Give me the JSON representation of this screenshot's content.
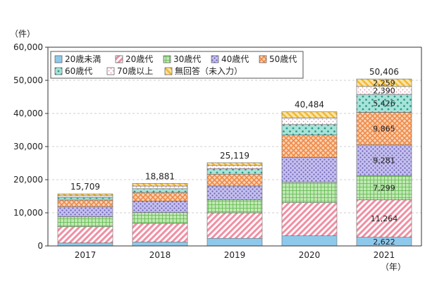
{
  "chart_data": {
    "type": "bar",
    "stacked": true,
    "y_unit_label": "（件）",
    "x_unit_label": "（年）",
    "categories": [
      "2017",
      "2018",
      "2019",
      "2020",
      "2021"
    ],
    "totals": [
      15709,
      18881,
      25119,
      40484,
      50406
    ],
    "total_labels": [
      "15,709",
      "18,881",
      "25,119",
      "40,484",
      "50,406"
    ],
    "ylim": [
      0,
      60000
    ],
    "yticks": [
      0,
      10000,
      20000,
      30000,
      40000,
      50000,
      60000
    ],
    "ytick_labels": [
      "0",
      "10,000",
      "20,000",
      "30,000",
      "40,000",
      "50,000",
      "60,000"
    ],
    "legend_position": "top-left",
    "series": [
      {
        "name": "20歳未満",
        "color": "#8ec9ec",
        "pattern": "solid",
        "values": [
          900,
          1150,
          2300,
          3050,
          2622
        ],
        "labels": [
          "",
          "",
          "",
          "",
          "2,622"
        ]
      },
      {
        "name": "20歳代",
        "color": "#f08fa3",
        "pattern": "diag",
        "values": [
          4900,
          5650,
          7700,
          10000,
          11264
        ],
        "labels": [
          "",
          "",
          "",
          "",
          "11,264"
        ]
      },
      {
        "name": "30歳代",
        "color": "#7fcf6a",
        "pattern": "grid",
        "values": [
          3050,
          3300,
          3900,
          6150,
          7299
        ],
        "labels": [
          "",
          "",
          "",
          "",
          "7,299"
        ]
      },
      {
        "name": "40歳代",
        "color": "#9d94d8",
        "pattern": "dots",
        "values": [
          3000,
          3450,
          4200,
          7500,
          9281
        ],
        "labels": [
          "",
          "",
          "",
          "",
          "9,281"
        ]
      },
      {
        "name": "50歳代",
        "color": "#f5a36a",
        "pattern": "cross",
        "values": [
          2000,
          2600,
          3550,
          6800,
          9865
        ],
        "labels": [
          "",
          "",
          "",
          "",
          "9,865"
        ]
      },
      {
        "name": "60歳代",
        "color": "#5cc5b5",
        "pattern": "sparsedots",
        "values": [
          759,
          1130,
          1650,
          3150,
          5426
        ],
        "labels": [
          "",
          "",
          "",
          "",
          "5,426"
        ]
      },
      {
        "name": "70歳以上",
        "color": "#f4a7c1",
        "pattern": "pinkdots",
        "values": [
          500,
          800,
          1000,
          1984,
          2390
        ],
        "labels": [
          "",
          "",
          "",
          "",
          "2,390"
        ]
      },
      {
        "name": "無回答（未入力）",
        "color": "#f3c552",
        "pattern": "diag-yellow",
        "values": [
          600,
          801,
          819,
          1850,
          2259
        ],
        "labels": [
          "",
          "",
          "",
          "",
          "2,259"
        ]
      }
    ]
  }
}
